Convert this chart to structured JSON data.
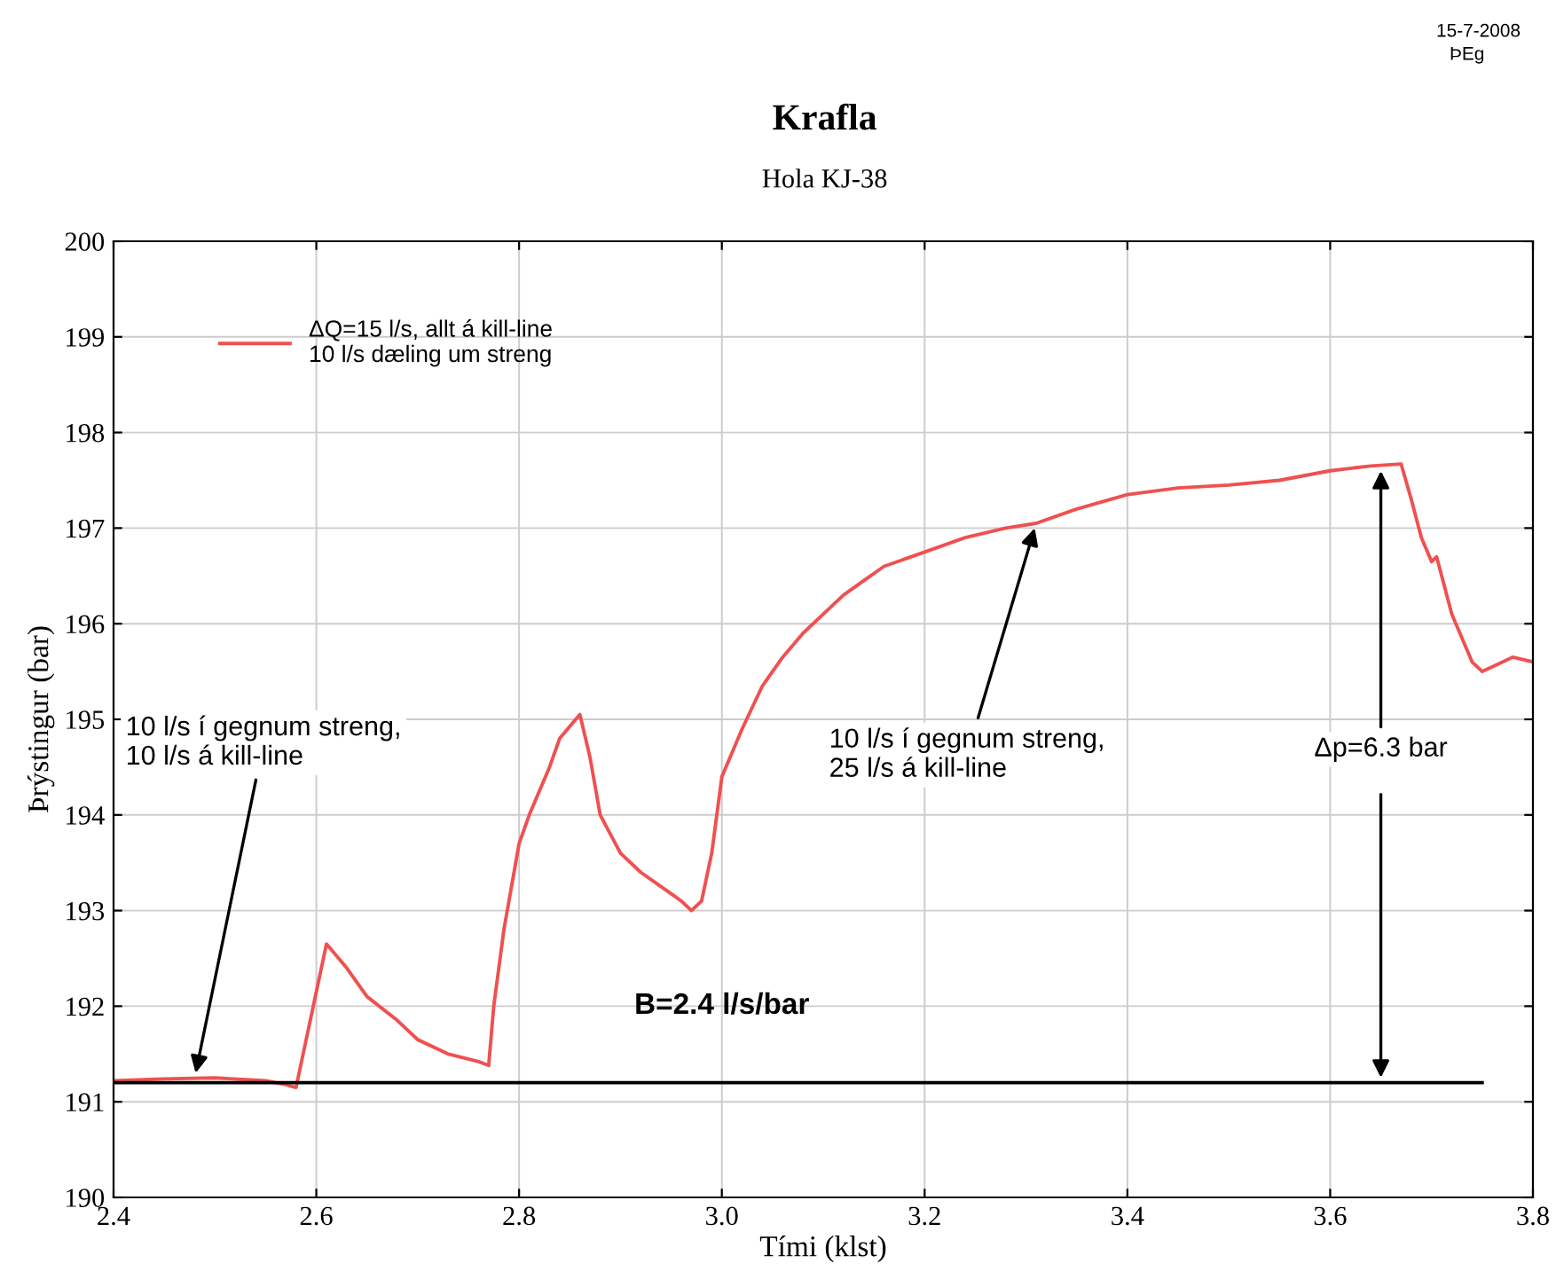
{
  "chart_data": {
    "type": "line",
    "title": "Krafla",
    "subtitle": "Hola KJ-38",
    "xlabel": "Tími (klst)",
    "ylabel": "Þrýstingur (bar)",
    "xlim": [
      2.4,
      3.8
    ],
    "xticks": [
      {
        "value": 2.4,
        "label": "2.4"
      },
      {
        "value": 2.6,
        "label": "2.6"
      },
      {
        "value": 2.8,
        "label": "2.8"
      },
      {
        "value": 3.0,
        "label": "3.0"
      },
      {
        "value": 3.2,
        "label": "3.2"
      },
      {
        "value": 3.4,
        "label": "3.4"
      },
      {
        "value": 3.6,
        "label": "3.6"
      },
      {
        "value": 3.8,
        "label": "3.8"
      }
    ],
    "ylim": [
      190,
      200
    ],
    "yticks": [
      190,
      191,
      192,
      193,
      194,
      195,
      196,
      197,
      198,
      199,
      200
    ],
    "grid": true,
    "legend": "top left",
    "series": [
      {
        "name": "ΔQ=15 l/s, allt á kill-line\n10 l/s dæling um streng",
        "color": "#f05050",
        "x": [
          2.4,
          2.45,
          2.5,
          2.55,
          2.57,
          2.58,
          2.595,
          2.61,
          2.63,
          2.65,
          2.68,
          2.7,
          2.73,
          2.76,
          2.77,
          2.775,
          2.785,
          2.8,
          2.81,
          2.83,
          2.84,
          2.86,
          2.87,
          2.88,
          2.9,
          2.92,
          2.94,
          2.96,
          2.97,
          2.98,
          2.99,
          3.0,
          3.02,
          3.04,
          3.06,
          3.08,
          3.1,
          3.12,
          3.14,
          3.16,
          3.2,
          3.24,
          3.28,
          3.31,
          3.35,
          3.4,
          3.45,
          3.5,
          3.55,
          3.6,
          3.64,
          3.67,
          3.68,
          3.69,
          3.7,
          3.705,
          3.72,
          3.74,
          3.75,
          3.76,
          3.78,
          3.8
        ],
        "values": [
          191.22,
          191.24,
          191.25,
          191.22,
          191.18,
          191.15,
          191.9,
          192.65,
          192.4,
          192.1,
          191.85,
          191.65,
          191.5,
          191.42,
          191.38,
          192.0,
          192.8,
          193.7,
          194.0,
          194.5,
          194.8,
          195.05,
          194.6,
          194.0,
          193.6,
          193.4,
          193.25,
          193.1,
          193.0,
          193.1,
          193.6,
          194.4,
          194.9,
          195.35,
          195.65,
          195.9,
          196.1,
          196.3,
          196.45,
          196.6,
          196.75,
          196.9,
          197.0,
          197.05,
          197.2,
          197.35,
          197.42,
          197.45,
          197.5,
          197.6,
          197.65,
          197.67,
          197.3,
          196.9,
          196.65,
          196.7,
          196.1,
          195.6,
          195.5,
          195.55,
          195.65,
          195.6
        ]
      },
      {
        "type": "line",
        "color": "#000000",
        "x": [
          2.4,
          3.75
        ],
        "values": [
          191.2,
          191.2
        ]
      }
    ],
    "annotations": [
      {
        "text": "10 l/s í gegnum streng,\n10 l/s á kill-line",
        "x": 2.48,
        "y": 191.25
      },
      {
        "text": "10 l/s í gegnum streng,\n25 l/s á kill-line",
        "x": 3.31,
        "y": 197.05
      },
      {
        "text": "Δp=6.3 bar",
        "x": 3.65,
        "y": 197.65
      },
      "B=2.4 l/s/bar",
      "15-7-2008",
      "ÞEg"
    ]
  }
}
